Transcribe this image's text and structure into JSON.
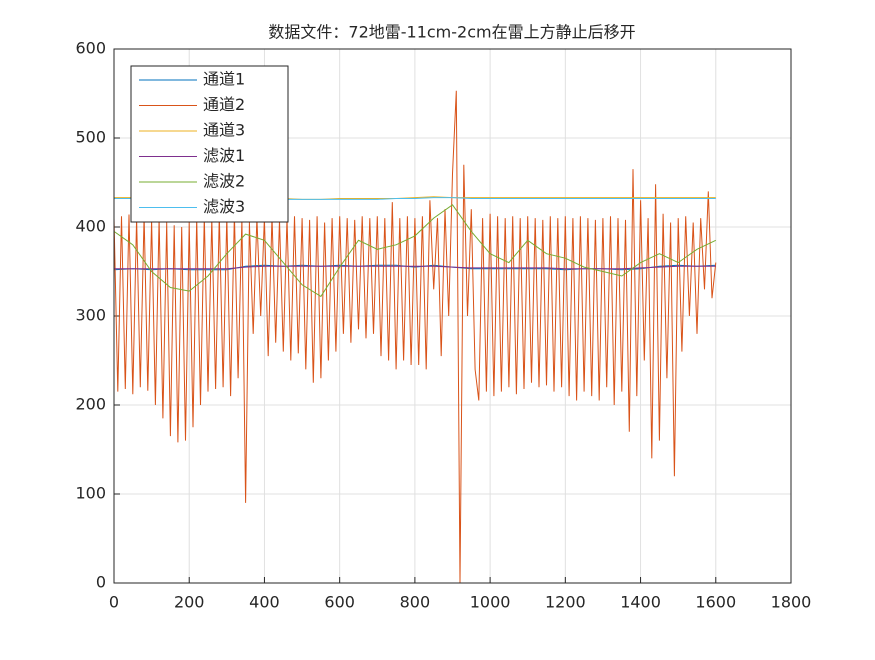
{
  "chart_data": {
    "type": "line",
    "title": "数据文件：72地雷-11cm-2cm在雷上方静止后移开",
    "xlim": [
      0,
      1800
    ],
    "xticks": [
      0,
      200,
      400,
      600,
      800,
      1000,
      1200,
      1400,
      1600,
      1800
    ],
    "ylim": [
      0,
      600
    ],
    "yticks": [
      0,
      100,
      200,
      300,
      400,
      500,
      600
    ],
    "grid": true,
    "legend": "upper left",
    "series": [
      {
        "name": "通道1",
        "color": "#0072BD",
        "x": [
          0,
          50,
          100,
          150,
          200,
          250,
          300,
          350,
          400,
          450,
          500,
          550,
          600,
          650,
          700,
          750,
          800,
          850,
          900,
          950,
          1000,
          1050,
          1100,
          1150,
          1200,
          1250,
          1300,
          1350,
          1400,
          1450,
          1500,
          1550,
          1600
        ],
        "values": [
          352,
          353,
          352,
          353,
          352,
          352,
          352,
          356,
          357,
          356,
          357,
          356,
          357,
          356,
          357,
          357,
          355,
          357,
          355,
          353,
          353,
          353,
          353,
          353,
          352,
          353,
          353,
          352,
          353,
          356,
          357,
          356,
          357
        ]
      },
      {
        "name": "通道2",
        "color": "#D95319",
        "x": [
          0,
          10,
          20,
          30,
          40,
          50,
          60,
          70,
          80,
          90,
          100,
          110,
          120,
          130,
          140,
          150,
          160,
          170,
          180,
          190,
          200,
          210,
          220,
          230,
          240,
          250,
          260,
          270,
          280,
          290,
          300,
          310,
          320,
          330,
          340,
          350,
          360,
          370,
          380,
          390,
          400,
          410,
          420,
          430,
          440,
          450,
          460,
          470,
          480,
          490,
          500,
          510,
          520,
          530,
          540,
          550,
          560,
          570,
          580,
          590,
          600,
          610,
          620,
          630,
          640,
          650,
          660,
          670,
          680,
          690,
          700,
          710,
          720,
          730,
          740,
          750,
          760,
          770,
          780,
          790,
          800,
          810,
          820,
          830,
          840,
          850,
          860,
          870,
          880,
          890,
          900,
          910,
          920,
          930,
          940,
          950,
          960,
          970,
          980,
          990,
          1000,
          1010,
          1020,
          1030,
          1040,
          1050,
          1060,
          1070,
          1080,
          1090,
          1100,
          1110,
          1120,
          1130,
          1140,
          1150,
          1160,
          1170,
          1180,
          1190,
          1200,
          1210,
          1220,
          1230,
          1240,
          1250,
          1260,
          1270,
          1280,
          1290,
          1300,
          1310,
          1320,
          1330,
          1340,
          1350,
          1360,
          1370,
          1380,
          1390,
          1400,
          1410,
          1420,
          1430,
          1440,
          1450,
          1460,
          1470,
          1480,
          1490,
          1500,
          1510,
          1520,
          1530,
          1540,
          1550,
          1560,
          1570,
          1580,
          1590,
          1600
        ],
        "values": [
          410,
          215,
          412,
          218,
          414,
          212,
          410,
          220,
          413,
          216,
          408,
          200,
          410,
          185,
          405,
          165,
          402,
          158,
          400,
          160,
          405,
          175,
          410,
          200,
          412,
          215,
          410,
          218,
          414,
          220,
          412,
          210,
          415,
          230,
          410,
          90,
          405,
          280,
          410,
          300,
          410,
          255,
          412,
          270,
          408,
          260,
          410,
          250,
          412,
          258,
          410,
          240,
          408,
          225,
          412,
          230,
          405,
          250,
          410,
          260,
          412,
          280,
          410,
          270,
          408,
          285,
          412,
          275,
          410,
          280,
          412,
          255,
          410,
          250,
          428,
          240,
          410,
          250,
          412,
          245,
          410,
          245,
          412,
          240,
          430,
          330,
          410,
          255,
          420,
          300,
          460,
          553,
          0,
          470,
          300,
          420,
          240,
          205,
          410,
          215,
          415,
          210,
          412,
          215,
          410,
          220,
          412,
          212,
          410,
          218,
          412,
          225,
          410,
          220,
          408,
          222,
          412,
          215,
          410,
          220,
          412,
          210,
          410,
          205,
          412,
          215,
          410,
          210,
          408,
          205,
          410,
          220,
          412,
          200,
          410,
          215,
          408,
          170,
          465,
          210,
          430,
          250,
          410,
          140,
          448,
          160,
          415,
          230,
          405,
          120,
          410,
          260,
          412,
          300,
          405,
          280,
          410,
          330,
          440,
          320,
          360
        ]
      },
      {
        "name": "通道3",
        "color": "#EDB120",
        "x": [
          0,
          50,
          100,
          150,
          200,
          250,
          300,
          350,
          400,
          450,
          500,
          550,
          600,
          650,
          700,
          750,
          800,
          850,
          900,
          950,
          1000,
          1050,
          1100,
          1150,
          1200,
          1250,
          1300,
          1350,
          1400,
          1450,
          1500,
          1550,
          1600
        ],
        "values": [
          433,
          433,
          434,
          433,
          433,
          433,
          433,
          434,
          433,
          432,
          431,
          431,
          432,
          432,
          432,
          432,
          433,
          434,
          433,
          433,
          433,
          433,
          433,
          433,
          433,
          433,
          433,
          433,
          433,
          433,
          433,
          433,
          433
        ]
      },
      {
        "name": "滤波1",
        "color": "#7E2F8E",
        "x": [
          0,
          50,
          100,
          150,
          200,
          250,
          300,
          350,
          400,
          450,
          500,
          550,
          600,
          650,
          700,
          750,
          800,
          850,
          900,
          950,
          1000,
          1050,
          1100,
          1150,
          1200,
          1250,
          1300,
          1350,
          1400,
          1450,
          1500,
          1550,
          1600
        ],
        "values": [
          353,
          353,
          353,
          353,
          353,
          353,
          353,
          355,
          356,
          356,
          356,
          356,
          356,
          356,
          356,
          356,
          356,
          356,
          355,
          354,
          354,
          354,
          354,
          354,
          353,
          353,
          353,
          353,
          354,
          355,
          356,
          356,
          356
        ]
      },
      {
        "name": "滤波2",
        "color": "#77AC30",
        "x": [
          0,
          50,
          100,
          150,
          200,
          250,
          300,
          350,
          400,
          450,
          500,
          550,
          600,
          650,
          700,
          750,
          800,
          850,
          900,
          950,
          1000,
          1050,
          1100,
          1150,
          1200,
          1250,
          1300,
          1350,
          1400,
          1450,
          1500,
          1550,
          1600
        ],
        "values": [
          395,
          380,
          350,
          332,
          328,
          345,
          370,
          392,
          385,
          360,
          335,
          322,
          355,
          385,
          375,
          380,
          390,
          410,
          425,
          395,
          370,
          360,
          385,
          370,
          365,
          355,
          350,
          345,
          360,
          370,
          360,
          375,
          385
        ]
      },
      {
        "name": "滤波3",
        "color": "#4DBEEE",
        "x": [
          0,
          50,
          100,
          150,
          200,
          250,
          300,
          350,
          400,
          450,
          500,
          550,
          600,
          650,
          700,
          750,
          800,
          850,
          900,
          950,
          1000,
          1050,
          1100,
          1150,
          1200,
          1250,
          1300,
          1350,
          1400,
          1450,
          1500,
          1550,
          1600
        ],
        "values": [
          432,
          432,
          432,
          432,
          432,
          432,
          432,
          433,
          432,
          431,
          431,
          431,
          431,
          431,
          431,
          432,
          432,
          433,
          433,
          432,
          432,
          432,
          432,
          432,
          432,
          432,
          432,
          432,
          432,
          432,
          432,
          432,
          432
        ]
      }
    ]
  }
}
